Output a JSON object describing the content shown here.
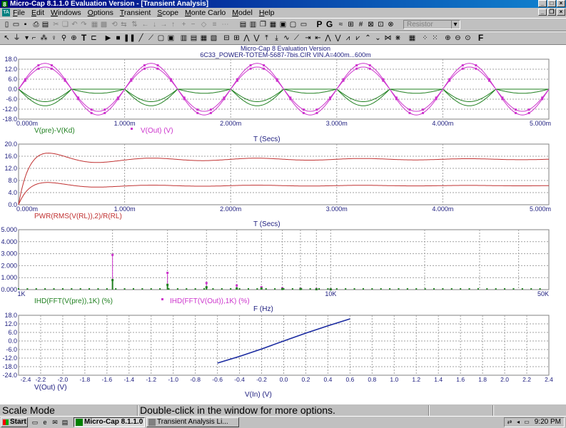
{
  "window": {
    "title": "Micro-Cap 8.1.1.0 Evaluation Version - [Transient Analysis]",
    "app_icon_text": "8",
    "doc_icon_text": "TA"
  },
  "menu": [
    "File",
    "Edit",
    "Windows",
    "Options",
    "Transient",
    "Scope",
    "Monte Carlo",
    "Model",
    "Help"
  ],
  "toolbar": {
    "component_combo": "Resistor",
    "letter_p": "P",
    "letter_g": "G",
    "letter_t": "T",
    "letter_f": "F"
  },
  "plot_header": {
    "title": "Micro-Cap 8 Evaluation Version",
    "subtitle": "6C33_POWER-TOTEM-5687-7bis.CIR VIN.A=400m...600m"
  },
  "status": {
    "mode": "Scale Mode",
    "hint": "Double-click in the window for more options."
  },
  "taskbar": {
    "start": "Start",
    "tasks": [
      "Micro-Cap 8.1.1.0 ...",
      "Transient Analysis Li..."
    ],
    "clock": "9:20 PM"
  },
  "colors": {
    "magenta": "#cc33cc",
    "green": "#208020",
    "red": "#c03030",
    "blue": "#1a2aa0",
    "axis_text": "#202080"
  },
  "chart_data": [
    {
      "type": "line",
      "title": "",
      "xlabel": "T (Secs)",
      "xlim": [
        0,
        0.005
      ],
      "ylim": [
        -18,
        18
      ],
      "x_ticks": [
        "0.000m",
        "1.000m",
        "2.000m",
        "3.000m",
        "4.000m",
        "5.000m"
      ],
      "y_ticks": [
        "18.0",
        "12.0",
        "6.0",
        "0.0",
        "-6.0",
        "-12.0",
        "-18.0"
      ],
      "grid": true,
      "series": [
        {
          "name": "V(pre)-V(Kd)",
          "color": "green",
          "kind": "rectified",
          "amplitude": 10,
          "frequency": 1000
        },
        {
          "name": "V(Out) (V)",
          "color": "magenta",
          "kind": "sine",
          "amplitude": 15.5,
          "frequency": 1000
        },
        {
          "name": "",
          "color": "magenta",
          "kind": "sine",
          "amplitude": 13.3,
          "frequency": 1000
        }
      ]
    },
    {
      "type": "line",
      "title": "",
      "xlabel": "T (Secs)",
      "xlim": [
        0,
        0.005
      ],
      "ylim": [
        0,
        20
      ],
      "x_ticks": [
        "0.000m",
        "1.000m",
        "2.000m",
        "3.000m",
        "4.000m",
        "5.000m"
      ],
      "y_ticks": [
        "20.0",
        "16.0",
        "12.0",
        "8.0",
        "4.0",
        "0.0"
      ],
      "grid": true,
      "series": [
        {
          "name": "PWR(RMS(V(RL)),2)/R(RL)",
          "color": "red",
          "final_value": 15.0,
          "peak": 19.5
        },
        {
          "name": "",
          "color": "red",
          "final_value": 6.3,
          "peak": 8.6
        }
      ]
    },
    {
      "type": "bar",
      "title": "",
      "xlabel": "F (Hz)",
      "xscale": "log",
      "xlim": [
        1000,
        50000
      ],
      "ylim": [
        0,
        5
      ],
      "x_ticks": [
        "1K",
        "10K",
        "50K"
      ],
      "y_ticks": [
        "5.000",
        "4.000",
        "3.000",
        "2.000",
        "1.000",
        "0.000"
      ],
      "grid": true,
      "series": [
        {
          "name": "IHD(FFT(V(pre)),1K) (%)",
          "color": "green",
          "x": [
            2000,
            3000,
            4000,
            5000,
            6000,
            7000,
            8000,
            9000,
            10000
          ],
          "values": [
            0.8,
            0.4,
            0.2,
            0.1,
            0.1,
            0.05,
            0.05,
            0.03,
            0.02
          ]
        },
        {
          "name": "IHD(FFT(V(Out)),1K) (%)",
          "color": "magenta",
          "x": [
            2000,
            3000,
            4000,
            5000,
            6000,
            7000,
            8000,
            9000,
            10000
          ],
          "values": [
            2.9,
            1.4,
            0.55,
            0.35,
            0.2,
            0.12,
            0.08,
            0.05,
            0.03
          ]
        }
      ]
    },
    {
      "type": "line",
      "title": "",
      "xlabel": "V(In) (V)",
      "ylabel": "V(Out) (V)",
      "xlim": [
        -2.4,
        2.4
      ],
      "ylim": [
        -24,
        18
      ],
      "x_ticks": [
        "-2.4",
        "-2.2",
        "-2.0",
        "-1.8",
        "-1.6",
        "-1.4",
        "-1.2",
        "-1.0",
        "-0.8",
        "-0.6",
        "-0.4",
        "-0.2",
        "0.0",
        "0.2",
        "0.4",
        "0.6",
        "0.8",
        "1.0",
        "1.2",
        "1.4",
        "1.6",
        "1.8",
        "2.0",
        "2.2",
        "2.4"
      ],
      "y_ticks": [
        "18.0",
        "12.0",
        "6.0",
        "0.0",
        "-6.0",
        "-12.0",
        "-18.0",
        "-24.0"
      ],
      "grid": true,
      "series": [
        {
          "name": "",
          "color": "blue",
          "x": [
            -0.6,
            -0.4,
            -0.2,
            0.0,
            0.2,
            0.4,
            0.6
          ],
          "y": [
            -15.5,
            -10.8,
            -5.6,
            0.0,
            5.5,
            10.6,
            15.5
          ]
        }
      ]
    }
  ]
}
